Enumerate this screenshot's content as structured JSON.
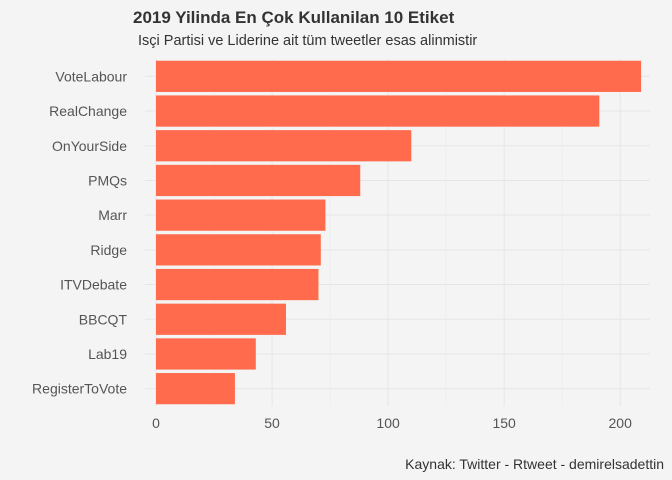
{
  "chart_data": {
    "type": "bar",
    "orientation": "horizontal",
    "title": "2019 Yilinda En Çok Kullanilan 10 Etiket",
    "subtitle": "Isçi Partisi ve Liderine ait tüm tweetler esas alinmistir",
    "caption": "Kaynak: Twitter - Rtweet - demirelsadettin",
    "xlabel": "",
    "ylabel": "",
    "categories": [
      "VoteLabour",
      "RealChange",
      "OnYourSide",
      "PMQs",
      "Marr",
      "Ridge",
      "ITVDebate",
      "BBCQT",
      "Lab19",
      "RegisterToVote"
    ],
    "values": [
      209,
      191,
      110,
      88,
      73,
      71,
      70,
      56,
      43,
      34
    ],
    "xlim": [
      0,
      220
    ],
    "xticks": [
      0,
      50,
      100,
      150,
      200
    ],
    "bar_color": "#ff6b4c",
    "grid": true
  }
}
